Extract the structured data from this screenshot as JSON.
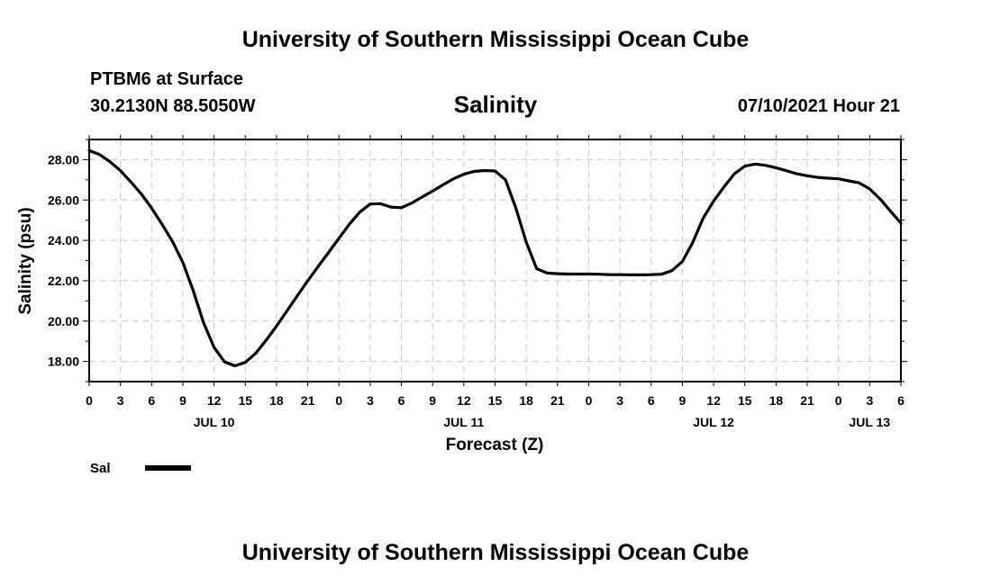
{
  "header": {
    "title": "University of Southern Mississippi Ocean Cube",
    "station": "PTBM6 at Surface",
    "coords": "30.2130N  88.5050W",
    "datetime": "07/10/2021 Hour 21"
  },
  "footer": {
    "title": "University of Southern Mississippi Ocean Cube"
  },
  "chart_data": {
    "type": "line",
    "title": "Salinity",
    "xlabel": "Forecast (Z)",
    "ylabel": "Salinity (psu)",
    "xlim": [
      0,
      78
    ],
    "ylim": [
      17.0,
      29.0
    ],
    "grid": true,
    "x_ticks": [
      0,
      3,
      6,
      9,
      12,
      15,
      18,
      21,
      24,
      27,
      30,
      33,
      36,
      39,
      42,
      45,
      48,
      51,
      54,
      57,
      60,
      63,
      66,
      69,
      72,
      75,
      78
    ],
    "x_tick_labels": [
      "0",
      "3",
      "6",
      "9",
      "12",
      "15",
      "18",
      "21",
      "0",
      "3",
      "6",
      "9",
      "12",
      "15",
      "18",
      "21",
      "0",
      "3",
      "6",
      "9",
      "12",
      "15",
      "18",
      "21",
      "0",
      "3",
      "6"
    ],
    "date_labels": [
      {
        "x": 12,
        "label": "JUL 10"
      },
      {
        "x": 36,
        "label": "JUL 11"
      },
      {
        "x": 60,
        "label": "JUL 12"
      },
      {
        "x": 75,
        "label": "JUL 13"
      }
    ],
    "y_ticks": [
      18.0,
      20.0,
      22.0,
      24.0,
      26.0,
      28.0
    ],
    "y_tick_labels": [
      "18.00",
      "20.00",
      "22.00",
      "24.00",
      "26.00",
      "28.00"
    ],
    "legend": [
      {
        "name": "Sal",
        "color": "#000000"
      }
    ],
    "series": [
      {
        "name": "Sal",
        "color": "#000000",
        "x": [
          0,
          1,
          2,
          3,
          4,
          5,
          6,
          7,
          8,
          9,
          10,
          11,
          12,
          13,
          14,
          15,
          16,
          17,
          18,
          19,
          20,
          21,
          22,
          23,
          24,
          25,
          26,
          27,
          28,
          29,
          30,
          31,
          32,
          33,
          34,
          35,
          36,
          37,
          38,
          39,
          40,
          41,
          42,
          43,
          44,
          45,
          46,
          47,
          48,
          49,
          50,
          51,
          52,
          53,
          54,
          55,
          56,
          57,
          58,
          59,
          60,
          61,
          62,
          63,
          64,
          65,
          66,
          67,
          68,
          69,
          70,
          71,
          72,
          73,
          74,
          75,
          76,
          77,
          78
        ],
        "values": [
          28.45,
          28.25,
          27.9,
          27.45,
          26.9,
          26.3,
          25.6,
          24.8,
          23.95,
          22.9,
          21.5,
          19.9,
          18.7,
          17.98,
          17.78,
          17.95,
          18.4,
          19.05,
          19.75,
          20.5,
          21.25,
          22.0,
          22.7,
          23.4,
          24.1,
          24.8,
          25.4,
          25.8,
          25.82,
          25.65,
          25.62,
          25.85,
          26.15,
          26.45,
          26.75,
          27.05,
          27.28,
          27.42,
          27.46,
          27.44,
          27.0,
          25.6,
          23.9,
          22.6,
          22.38,
          22.35,
          22.33,
          22.33,
          22.33,
          22.32,
          22.3,
          22.3,
          22.29,
          22.29,
          22.3,
          22.32,
          22.5,
          22.95,
          23.9,
          25.1,
          25.95,
          26.65,
          27.3,
          27.68,
          27.78,
          27.72,
          27.6,
          27.45,
          27.3,
          27.2,
          27.12,
          27.08,
          27.05,
          26.95,
          26.85,
          26.55,
          26.05,
          25.45,
          24.85
        ]
      }
    ]
  }
}
